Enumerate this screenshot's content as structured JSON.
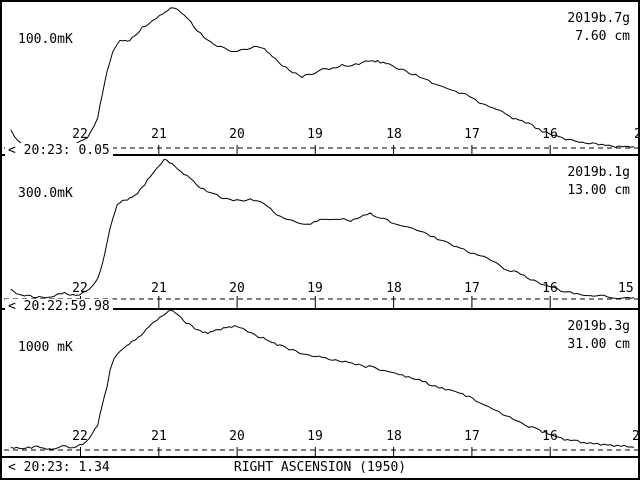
{
  "xlabel": "RIGHT ASCENSION (1950)",
  "chart_data": [
    {
      "type": "line",
      "title": "2019b.7g",
      "subtitle": "7.60 cm",
      "scale_label": "100.0mK",
      "timestamp_label": "< 20:23: 0.05",
      "right_edge_label": "2",
      "xlabel": "RIGHT ASCENSION (1950)",
      "ylabel": "",
      "x_range_ra": [
        22.9,
        14.93
      ],
      "x_ticks": [
        22,
        21,
        20,
        19,
        18,
        17,
        16
      ],
      "x_tick_labels": [
        "22",
        "21",
        "20",
        "19",
        "18",
        "17",
        "16"
      ],
      "y_units": "percent of panel amplitude (vertical scale bar = 100.0mK)",
      "points": [
        [
          22.89,
          13
        ],
        [
          22.84,
          7
        ],
        [
          22.79,
          4
        ],
        [
          22.68,
          2
        ],
        [
          22.49,
          1
        ],
        [
          22.29,
          2
        ],
        [
          22.1,
          3
        ],
        [
          22.04,
          4
        ],
        [
          21.91,
          7
        ],
        [
          21.78,
          21
        ],
        [
          21.72,
          39
        ],
        [
          21.66,
          54
        ],
        [
          21.59,
          68
        ],
        [
          21.53,
          75
        ],
        [
          21.46,
          77
        ],
        [
          21.4,
          76
        ],
        [
          21.34,
          79
        ],
        [
          21.27,
          82
        ],
        [
          21.21,
          86
        ],
        [
          21.08,
          91
        ],
        [
          20.95,
          96
        ],
        [
          20.85,
          100
        ],
        [
          20.76,
          99
        ],
        [
          20.63,
          93
        ],
        [
          20.51,
          84
        ],
        [
          20.38,
          77
        ],
        [
          20.25,
          73
        ],
        [
          20.12,
          70
        ],
        [
          20.0,
          69
        ],
        [
          19.87,
          71
        ],
        [
          19.74,
          73
        ],
        [
          19.65,
          71
        ],
        [
          19.55,
          66
        ],
        [
          19.42,
          59
        ],
        [
          19.29,
          54
        ],
        [
          19.17,
          51
        ],
        [
          19.04,
          53
        ],
        [
          18.91,
          56
        ],
        [
          18.78,
          57
        ],
        [
          18.66,
          59
        ],
        [
          18.53,
          59
        ],
        [
          18.4,
          61
        ],
        [
          18.27,
          63
        ],
        [
          18.17,
          61
        ],
        [
          18.02,
          59
        ],
        [
          17.89,
          56
        ],
        [
          17.76,
          53
        ],
        [
          17.63,
          50
        ],
        [
          17.51,
          47
        ],
        [
          17.38,
          44
        ],
        [
          17.25,
          41
        ],
        [
          17.12,
          39
        ],
        [
          16.99,
          36
        ],
        [
          16.87,
          31
        ],
        [
          16.74,
          29
        ],
        [
          16.61,
          26
        ],
        [
          16.48,
          21
        ],
        [
          16.36,
          19
        ],
        [
          16.23,
          16
        ],
        [
          16.1,
          12
        ],
        [
          15.97,
          9
        ],
        [
          15.85,
          7
        ],
        [
          15.72,
          5
        ],
        [
          15.59,
          4
        ],
        [
          15.46,
          3
        ],
        [
          15.34,
          2
        ],
        [
          15.21,
          1
        ],
        [
          15.08,
          1
        ],
        [
          14.93,
          1
        ]
      ]
    },
    {
      "type": "line",
      "title": "2019b.1g",
      "subtitle": "13.00 cm",
      "scale_label": "300.0mK",
      "timestamp_label": "< 20:22:59.98",
      "right_edge_label": "15",
      "xlabel": "RIGHT ASCENSION (1950)",
      "ylabel": "",
      "x_range_ra": [
        22.9,
        14.93
      ],
      "x_ticks": [
        22,
        21,
        20,
        19,
        18,
        17,
        16
      ],
      "x_tick_labels": [
        "22",
        "21",
        "20",
        "19",
        "18",
        "17",
        "16"
      ],
      "y_units": "percent of panel amplitude (vertical scale bar = 300.0mK)",
      "points": [
        [
          22.89,
          7
        ],
        [
          22.82,
          4
        ],
        [
          22.68,
          2
        ],
        [
          22.49,
          1
        ],
        [
          22.29,
          3
        ],
        [
          22.2,
          4
        ],
        [
          22.1,
          3
        ],
        [
          21.97,
          4
        ],
        [
          21.85,
          9
        ],
        [
          21.78,
          14
        ],
        [
          21.72,
          25
        ],
        [
          21.66,
          41
        ],
        [
          21.59,
          57
        ],
        [
          21.53,
          68
        ],
        [
          21.46,
          71
        ],
        [
          21.4,
          71
        ],
        [
          21.34,
          73
        ],
        [
          21.27,
          76
        ],
        [
          21.21,
          80
        ],
        [
          21.11,
          87
        ],
        [
          21.02,
          94
        ],
        [
          20.93,
          100
        ],
        [
          20.83,
          97
        ],
        [
          20.72,
          91
        ],
        [
          20.6,
          86
        ],
        [
          20.47,
          80
        ],
        [
          20.34,
          76
        ],
        [
          20.21,
          73
        ],
        [
          20.09,
          71
        ],
        [
          19.96,
          70
        ],
        [
          19.83,
          71
        ],
        [
          19.7,
          69
        ],
        [
          19.57,
          64
        ],
        [
          19.45,
          59
        ],
        [
          19.32,
          56
        ],
        [
          19.19,
          54
        ],
        [
          19.06,
          54
        ],
        [
          18.94,
          56
        ],
        [
          18.81,
          57
        ],
        [
          18.68,
          57
        ],
        [
          18.55,
          56
        ],
        [
          18.43,
          59
        ],
        [
          18.3,
          61
        ],
        [
          18.21,
          59
        ],
        [
          18.08,
          56
        ],
        [
          17.95,
          53
        ],
        [
          17.83,
          51
        ],
        [
          17.7,
          49
        ],
        [
          17.57,
          46
        ],
        [
          17.44,
          43
        ],
        [
          17.31,
          40
        ],
        [
          17.19,
          37
        ],
        [
          17.06,
          34
        ],
        [
          16.93,
          31
        ],
        [
          16.8,
          29
        ],
        [
          16.68,
          25
        ],
        [
          16.55,
          21
        ],
        [
          16.42,
          19
        ],
        [
          16.29,
          15
        ],
        [
          16.17,
          12
        ],
        [
          16.04,
          9
        ],
        [
          15.91,
          7
        ],
        [
          15.78,
          5
        ],
        [
          15.65,
          4
        ],
        [
          15.53,
          3
        ],
        [
          15.4,
          2
        ],
        [
          15.27,
          2
        ],
        [
          15.14,
          1
        ],
        [
          15.01,
          1
        ],
        [
          14.93,
          1
        ]
      ]
    },
    {
      "type": "line",
      "title": "2019b.3g",
      "subtitle": "31.00 cm",
      "scale_label": "1000 mK",
      "timestamp_label": "< 20:23: 1.34",
      "right_edge_label": "2",
      "xlabel": "RIGHT ASCENSION (1950)",
      "ylabel": "",
      "x_range_ra": [
        22.9,
        14.93
      ],
      "x_ticks": [
        22,
        21,
        20,
        19,
        18,
        17,
        16
      ],
      "x_tick_labels": [
        "22",
        "21",
        "20",
        "19",
        "18",
        "17",
        "16"
      ],
      "y_units": "percent of panel amplitude (vertical scale bar = 1000 mK)",
      "points": [
        [
          22.89,
          2
        ],
        [
          22.74,
          1
        ],
        [
          22.55,
          2
        ],
        [
          22.36,
          1
        ],
        [
          22.23,
          3
        ],
        [
          22.1,
          2
        ],
        [
          21.97,
          4
        ],
        [
          21.85,
          11
        ],
        [
          21.78,
          18
        ],
        [
          21.72,
          32
        ],
        [
          21.66,
          46
        ],
        [
          21.62,
          57
        ],
        [
          21.57,
          66
        ],
        [
          21.49,
          71
        ],
        [
          21.41,
          74
        ],
        [
          21.34,
          77
        ],
        [
          21.26,
          80
        ],
        [
          21.16,
          86
        ],
        [
          21.06,
          91
        ],
        [
          20.95,
          96
        ],
        [
          20.85,
          100
        ],
        [
          20.75,
          97
        ],
        [
          20.65,
          91
        ],
        [
          20.54,
          87
        ],
        [
          20.44,
          84
        ],
        [
          20.34,
          84
        ],
        [
          20.24,
          86
        ],
        [
          20.14,
          87
        ],
        [
          20.03,
          89
        ],
        [
          19.93,
          87
        ],
        [
          19.83,
          84
        ],
        [
          19.73,
          81
        ],
        [
          19.63,
          79
        ],
        [
          19.52,
          76
        ],
        [
          19.42,
          74
        ],
        [
          19.29,
          71
        ],
        [
          19.17,
          69
        ],
        [
          19.04,
          67
        ],
        [
          18.91,
          66
        ],
        [
          18.78,
          64
        ],
        [
          18.66,
          63
        ],
        [
          18.53,
          62
        ],
        [
          18.4,
          60
        ],
        [
          18.27,
          59
        ],
        [
          18.14,
          57
        ],
        [
          18.02,
          55
        ],
        [
          17.89,
          53
        ],
        [
          17.76,
          51
        ],
        [
          17.63,
          49
        ],
        [
          17.51,
          46
        ],
        [
          17.38,
          44
        ],
        [
          17.25,
          43
        ],
        [
          17.12,
          40
        ],
        [
          16.99,
          37
        ],
        [
          16.87,
          33
        ],
        [
          16.74,
          29
        ],
        [
          16.61,
          26
        ],
        [
          16.48,
          22
        ],
        [
          16.36,
          19
        ],
        [
          16.23,
          16
        ],
        [
          16.1,
          13
        ],
        [
          16.0,
          11
        ],
        [
          15.9,
          9
        ],
        [
          15.78,
          7
        ],
        [
          15.65,
          6
        ],
        [
          15.53,
          5
        ],
        [
          15.4,
          4
        ],
        [
          15.27,
          4
        ],
        [
          15.14,
          3
        ],
        [
          15.01,
          3
        ],
        [
          14.93,
          2
        ]
      ]
    }
  ],
  "style": {
    "trace_color": "#000000",
    "background_color": "#ffffff"
  }
}
